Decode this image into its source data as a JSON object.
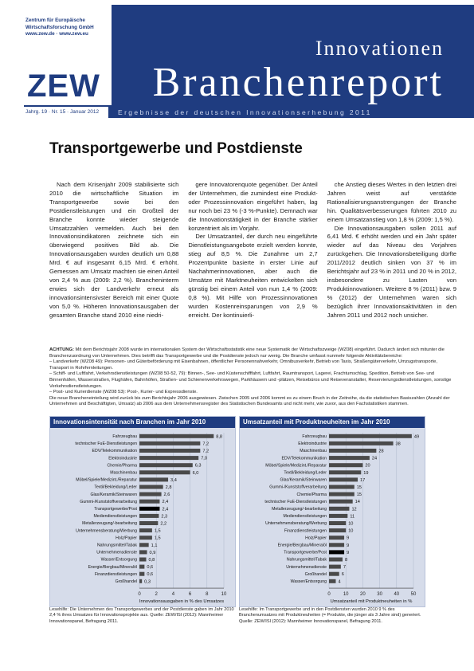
{
  "publisher": {
    "line1": "Zentrum für Europäische",
    "line2": "Wirtschaftsforschung GmbH",
    "web": "www.zew.de · www.zew.eu",
    "logo": "ZEW"
  },
  "header": {
    "kicker": "Innovationen",
    "title": "Branchenreport",
    "meta": "Jahrg. 19 · Nr. 15 · Januar 2012",
    "subtitle": "Ergebnisse der deutschen Innovationserhebung 2011"
  },
  "article": {
    "title": "Transportgewerbe und Postdienste",
    "col1": "Nach dem Krisenjahr 2009 stabilisierte sich 2010 die wirtschaftliche Situation im Transportgewerbe sowie bei den Postdienstleistungen und ein Großteil der Branche konnte wieder steigende Umsatzzahlen vermelden. Auch bei den Innovationsindikatoren zeichnete sich ein überwiegend positives Bild ab. Die Innovationsausgaben wurden deutlich um 0,88 Mrd. € auf insgesamt 6,15 Mrd. € erhöht. Gemessen am Umsatz machten sie einen Anteil von 2,4 % aus (2009: 2,2 %). Brancheninterm erwies sich der Landverkehr erneut als innovationsintensivster Bereich mit einer Quote von 5,0 %. Höheren Innovationsausgaben der gesamten Branche stand 2010 eine niedri-",
    "col2": "gere Innovatorenquote gegenüber. Der Anteil der Unternehmen, die zumindest eine Produkt- oder Prozessinnovation eingeführt haben, lag nur noch bei 23 % (-3 %-Punkte). Demnach war die Innovationstätigkeit in der Branche stärker konzentriert als im Vorjahr.\nDer Umsatzanteil, der durch neu eingeführte Dienstleistungsangebote erzielt werden konnte, stieg auf 8,5 %. Die Zunahme um 2,7 Prozentpunkte basierte in erster Linie auf Nachahmerinnovationen, aber auch die Umsätze mit Marktneuheiten entwickelten sich günstig bei einem Anteil von nun 1,4 % (2009: 0,8 %). Mit Hilfe von Prozessinnovationen wurden Kostenreinsparungen von 2,9 % erreicht. Der kontinuierli-",
    "col3": "che Anstieg dieses Wertes in den letzten drei Jahren weist auf verstärkte Rationalisierungsanstrengungen der Branche hin. Qualitätsverbesserungen führten 2010 zu einem Umsatzanstieg von 1,8 % (2009: 1,5 %).\nDie Innovationsausgaben sollen 2011 auf 6,41 Mrd. € erhöht werden und ein Jahr später wieder auf das Niveau des Vorjahres zurückgehen. Die Innovationsbeteiligung dürfte 2011/2012 deutlich sinken von 37 % im Berichtsjahr auf 23 % in 2011 und 20 % in 2012, insbesondere zu Lasten von Produktinnovationen. Weitere 8 % (2011) bzw. 9 % (2012) der Unternehmen waren sich bezüglich ihrer Innovationsaktivitäten in den Jahren 2011 und 2012 noch unsicher.",
    "note_label": "ACHTUNG:",
    "note": "Mit dem Berichtsjahr 2008 wurde im internationalen System der Wirtschaftsstatistik eine neue Systematik der Wirtschaftszweige (WZ08) eingeführt. Dadurch ändert sich mitunter die Branchenzuordnung von Unternehmen. Dies betrifft das Transportgewerbe und die Postdienste jedoch nur wenig. Die Branche umfasst nunmehr folgende Aktivitätsbereiche:",
    "bullets": [
      "Landverkehr (WZ08 49): Personen- und Güterbeförderung mit Eisenbahnen, öffentlicher Personennahverkehr, Omnibusverkehr, Betrieb von Taxis, Straßengüterverkehr, Umzugstransporte, Transport in Rohrfernleitungen.",
      "Schiff- und Luftfahrt, Verkehrsdienstleistungen (WZ08 50-52, 79): Binnen-, See- und Küstenschifffahrt, Luftfahrt, Raumtransport, Lagerei, Frachtumschlag, Spedition, Betrieb von See- und Binnenhäfen, Wasserstraßen, Flughäfen, Bahnhöfen, Straßen- und Schienenverkehrswegen, Parkhäusern und -plätzen, Reisebüros und Reiseveranstalter, Reservierungsdienstleistungen, sonstige Verkehrsdienstleistungen.",
      "Post- und Kurierdienste (WZ08 53): Post-, Kurier- und Expressdienste."
    ],
    "note2": "Die neue Brancheneinteilung wird zurück bis zum Berichtsjahr 2006 ausgewiesen. Zwischen 2005 und 2006 kommt es zu einem Bruch in der Zeitreihe, da die statistischen Basiszahlen (Anzahl der Unternehmen und Beschäftigten, Umsatz) ab 2006 aus dem Unternehmensregister des Statistischen Bundesamts und nicht mehr, wie zuvor, aus den Fachstatistiken stammen."
  },
  "chart_data": [
    {
      "type": "bar",
      "title": "Innovationsintensität nach Branchen im Jahr 2010",
      "xlabel": "Innovationsausgaben in % des Umsatzes",
      "xlim": [
        0,
        10
      ],
      "ticks": [
        "0",
        "2",
        "4",
        "6",
        "8",
        "10"
      ],
      "highlight": "Transportgewerbe/Post",
      "categories": [
        "Fahrzeugbau",
        "technischer FuE-Dienstleistungen",
        "EDV/Telekommunikation",
        "Elektroindustrie",
        "Chemie/Pharma",
        "Maschinenbau",
        "Möbel/Spiele/Medizint./Reparatur",
        "Textil/Bekleidung/Leder",
        "Glas/Keramik/Steinwaren",
        "Gummi-/Kunststoffverarbeitung",
        "Transportgewerbe/Post",
        "Mediendienstleistungen",
        "Metallerzeugung/-bearbeitung",
        "Unternehmensberatung/Werbung",
        "Holz/Papier",
        "Nahrungsmittel/Tabak",
        "Unternehmensdienste",
        "Wasser/Entsorgung",
        "Energie/Bergbau/Mineralöl",
        "Finanzdienstleistungen",
        "Großhandel"
      ],
      "values": [
        8.8,
        7.2,
        7.2,
        7.0,
        6.3,
        6.0,
        3.4,
        2.8,
        2.6,
        2.4,
        2.4,
        2.3,
        2.2,
        1.5,
        1.5,
        1.1,
        0.9,
        0.8,
        0.6,
        0.6,
        0.3
      ],
      "value_labels": [
        "8,8",
        "7,2",
        "7,2",
        "7,0",
        "6,3",
        "6,0",
        "3,4",
        "2,8",
        "2,6",
        "2,4",
        "2,4",
        "2,3",
        "2,2",
        "1,5",
        "1,5",
        "1,1",
        "0,9",
        "0,8",
        "0,6",
        "0,6",
        "0,3"
      ]
    },
    {
      "type": "bar",
      "title": "Umsatzanteil mit Produktneuheiten im Jahr 2010",
      "xlabel": "Umsatzanteil mit Produktneuheiten in %",
      "xlim": [
        0,
        50
      ],
      "ticks": [
        "0",
        "10",
        "20",
        "30",
        "40",
        "50"
      ],
      "highlight": "Transportgewerbe/Post",
      "categories": [
        "Fahrzeugbau",
        "Elektroindustrie",
        "Maschinenbau",
        "EDV/Telekommunikation",
        "Möbel/Spiele/Medizint./Reparatur",
        "Textil/Bekleidung/Leder",
        "Glas/Keramik/Steinwaren",
        "Gummi-/Kunststoffverarbeitung",
        "Chemie/Pharma",
        "technischer FuE-Dienstleistungen",
        "Metallerzeugung/-bearbeitung",
        "Mediendienstleistungen",
        "Unternehmensberatung/Werbung",
        "Finanzdienstleistungen",
        "Holz/Papier",
        "Energie/Bergbau/Mineralöl",
        "Transportgewerbe/Post",
        "Nahrungsmittel/Tabak",
        "Unternehmensdienste",
        "Großhandel",
        "Wasser/Entsorgung"
      ],
      "values": [
        49,
        38,
        28,
        24,
        20,
        19,
        17,
        15,
        15,
        14,
        12,
        11,
        10,
        10,
        9,
        9,
        9,
        8,
        7,
        6,
        4
      ],
      "value_labels": [
        "49",
        "38",
        "28",
        "24",
        "20",
        "19",
        "17",
        "15",
        "15",
        "14",
        "12",
        "11",
        "10",
        "10",
        "9",
        "9",
        "9",
        "8",
        "7",
        "6",
        "4"
      ]
    }
  ],
  "captions": {
    "left": "Lesehilfe: Die Unternehmen des Transportgewerbes und der Postdienste gaben im Jahr 2010 2,4 % ihres Umsatzes für Innovationsprojekte aus. Quelle: ZEW/ISI (2012): Mannheimer Innovationspanel, Befragung 2011.",
    "right": "Lesehilfe: Im Transportgewerbe und in den Postdiensten wurden 2010 9 % des Branchenumsatzes mit Produktneuheiten (= Produkte, die jünger als 3 Jahre sind) generiert. Quelle: ZEW/ISI (2012): Mannheimer Innovationspanel, Befragung 2011."
  },
  "colors": {
    "brand": "#1f3c80",
    "bar": "#4a4a4a",
    "highlight": "#000000",
    "panel": "#d6dcea"
  }
}
